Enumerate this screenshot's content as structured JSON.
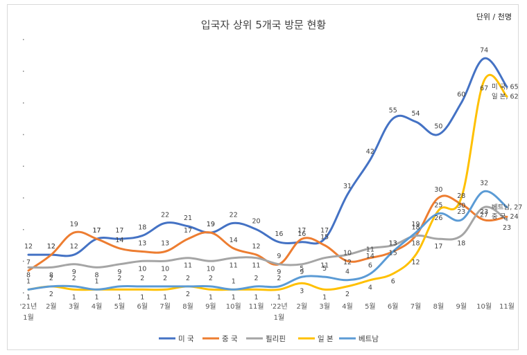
{
  "chart_data": {
    "type": "line",
    "title": "입국자 상위 5개국 방문 현황",
    "unit": "단위 / 천명",
    "x": [
      "'21년 1월",
      "2월",
      "3월",
      "4월",
      "5월",
      "6월",
      "7월",
      "8월",
      "9월",
      "10월",
      "11월",
      "'22년 1월",
      "2월",
      "3월",
      "4월",
      "5월",
      "6월",
      "7월",
      "8월",
      "9월",
      "10월",
      "11월"
    ],
    "x_ticks": [
      {
        "line1": "'21년",
        "line2": "1월"
      },
      {
        "line1": "2월",
        "line2": ""
      },
      {
        "line1": "3월",
        "line2": ""
      },
      {
        "line1": "4월",
        "line2": ""
      },
      {
        "line1": "5월",
        "line2": ""
      },
      {
        "line1": "6월",
        "line2": ""
      },
      {
        "line1": "7월",
        "line2": ""
      },
      {
        "line1": "8월",
        "line2": ""
      },
      {
        "line1": "9월",
        "line2": ""
      },
      {
        "line1": "10월",
        "line2": ""
      },
      {
        "line1": "11월",
        "line2": ""
      },
      {
        "line1": "'22년",
        "line2": "1월"
      },
      {
        "line1": "2월",
        "line2": ""
      },
      {
        "line1": "3월",
        "line2": ""
      },
      {
        "line1": "4월",
        "line2": ""
      },
      {
        "line1": "5월",
        "line2": ""
      },
      {
        "line1": "6월",
        "line2": ""
      },
      {
        "line1": "7월",
        "line2": ""
      },
      {
        "line1": "8월",
        "line2": ""
      },
      {
        "line1": "9월",
        "line2": ""
      },
      {
        "line1": "10월",
        "line2": ""
      },
      {
        "line1": "11월",
        "line2": ""
      }
    ],
    "ylim": [
      0,
      80
    ],
    "grid": false,
    "legend_position": "bottom",
    "series": [
      {
        "name": "미 국",
        "color": "#4472c4",
        "end_label": "미 국, 65",
        "values": [
          12,
          12,
          12,
          17,
          17,
          18,
          22,
          21,
          19,
          22,
          20,
          16,
          16,
          17,
          31,
          42,
          55,
          54,
          50,
          60,
          74,
          65
        ]
      },
      {
        "name": "중 국",
        "color": "#ed7d31",
        "end_label": "중 국, 24",
        "values": [
          7,
          12,
          19,
          17,
          14,
          13,
          13,
          17,
          19,
          14,
          12,
          9,
          17,
          15,
          10,
          11,
          13,
          18,
          30,
          28,
          23,
          24
        ]
      },
      {
        "name": "필리핀",
        "color": "#a5a5a5",
        "end_label": "",
        "values": [
          8,
          8,
          9,
          8,
          9,
          10,
          10,
          11,
          10,
          11,
          11,
          9,
          9,
          11,
          12,
          14,
          15,
          18,
          17,
          18,
          27,
          23
        ]
      },
      {
        "name": "일 본",
        "color": "#ffc000",
        "end_label": "일 본, 62",
        "values": [
          1,
          2,
          1,
          1,
          1,
          1,
          1,
          2,
          1,
          1,
          1,
          1,
          3,
          1,
          2,
          4,
          6,
          12,
          26,
          30,
          67,
          62
        ]
      },
      {
        "name": "베트남",
        "color": "#5b9bd5",
        "end_label": "베트남, 27",
        "values": [
          1,
          2,
          2,
          1,
          2,
          2,
          2,
          2,
          2,
          1,
          2,
          2,
          5,
          5,
          4,
          6,
          13,
          19,
          25,
          23,
          32,
          27
        ]
      }
    ]
  }
}
